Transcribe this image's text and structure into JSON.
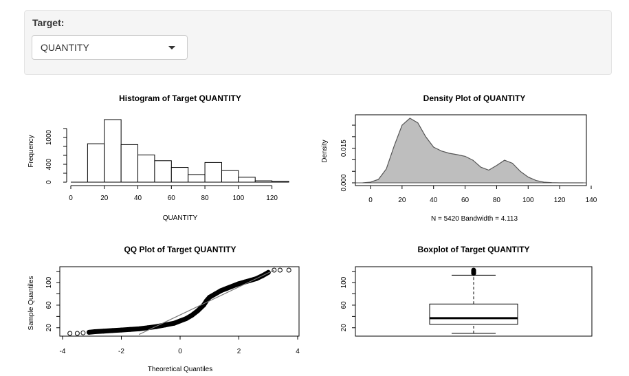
{
  "control": {
    "label": "Target:",
    "selected": "QUANTITY",
    "icon": "caret-down-icon"
  },
  "chart_data": [
    {
      "type": "bar",
      "title": "Histogram of Target QUANTITY",
      "xlabel": "QUANTITY",
      "ylabel": "Frequency",
      "bin_edges": [
        10,
        20,
        30,
        40,
        50,
        60,
        70,
        80,
        90,
        100,
        110,
        120,
        130
      ],
      "values": [
        860,
        1400,
        840,
        610,
        480,
        330,
        170,
        440,
        260,
        110,
        30,
        20
      ],
      "xlim": [
        0,
        130
      ],
      "ylim": [
        0,
        1400
      ],
      "xticks": [
        "0",
        "20",
        "40",
        "60",
        "80",
        "100",
        "120"
      ],
      "yticks": [
        "0",
        "400",
        "1000"
      ]
    },
    {
      "type": "area",
      "title": "Density Plot of QUANTITY",
      "xlabel": "N = 5420   Bandwidth = 4.113",
      "ylabel": "Density",
      "x": [
        -5,
        0,
        5,
        10,
        15,
        20,
        25,
        30,
        35,
        40,
        45,
        50,
        55,
        60,
        65,
        70,
        75,
        80,
        85,
        90,
        95,
        100,
        105,
        110,
        115,
        120,
        125,
        130,
        135
      ],
      "y": [
        0.0,
        0.0003,
        0.0015,
        0.006,
        0.016,
        0.025,
        0.028,
        0.026,
        0.02,
        0.0155,
        0.0138,
        0.0128,
        0.0122,
        0.0115,
        0.0098,
        0.0068,
        0.0055,
        0.0075,
        0.0098,
        0.0085,
        0.005,
        0.0025,
        0.001,
        0.0003,
        0.0001,
        0.0,
        0.0,
        0.0,
        0.0
      ],
      "xlim": [
        -5,
        140
      ],
      "ylim": [
        0,
        0.028
      ],
      "xticks": [
        "0",
        "20",
        "40",
        "60",
        "80",
        "100",
        "120",
        "140"
      ],
      "yticks": [
        "0.000",
        "0.015"
      ]
    },
    {
      "type": "scatter",
      "title": "QQ Plot of Target QUANTITY",
      "xlabel": "Theoretical Quantiles",
      "ylabel": "Sample Quantiles",
      "x": [
        -3.75,
        -3.5,
        -3.3,
        -3.1,
        -2.9,
        -2.6,
        -2.3,
        -2.0,
        -1.7,
        -1.4,
        -1.1,
        -0.8,
        -0.5,
        -0.2,
        0.0,
        0.2,
        0.4,
        0.6,
        0.8,
        0.9,
        1.0,
        1.2,
        1.4,
        1.6,
        1.8,
        2.0,
        2.2,
        2.4,
        2.6,
        2.8,
        3.0,
        3.2,
        3.4,
        3.7
      ],
      "y": [
        10,
        10,
        11,
        12,
        13,
        14,
        15,
        16,
        17,
        18,
        20,
        22,
        25,
        28,
        32,
        36,
        42,
        50,
        60,
        68,
        74,
        80,
        86,
        90,
        94,
        98,
        101,
        104,
        107,
        112,
        118,
        122,
        122,
        122
      ],
      "reference_line": {
        "x": [
          -1.4,
          3.2
        ],
        "y": [
          8,
          122
        ]
      },
      "xlim": [
        -4,
        4
      ],
      "ylim": [
        10,
        122
      ],
      "xticks": [
        "-4",
        "-2",
        "0",
        "2",
        "4"
      ],
      "yticks": [
        "20",
        "60",
        "100"
      ]
    },
    {
      "type": "box",
      "title": "Boxplot of Target QUANTITY",
      "min": 10,
      "q1": 26,
      "median": 37,
      "q3": 62,
      "max": 113,
      "outliers": [
        116,
        117,
        118,
        119,
        120,
        121,
        122
      ],
      "ylim": [
        10,
        122
      ],
      "yticks": [
        "20",
        "60",
        "100"
      ]
    }
  ]
}
